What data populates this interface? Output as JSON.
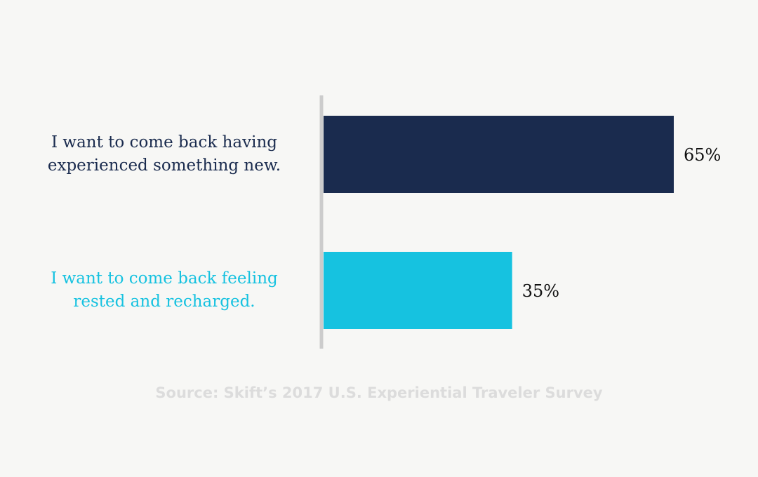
{
  "chart_data": {
    "type": "bar",
    "orientation": "horizontal",
    "categories": [
      "I want to come back having experienced something new.",
      "I want to come back feeling rested and recharged."
    ],
    "category_lines": [
      [
        "I want to come back having",
        "experienced something new."
      ],
      [
        "I want to come back feeling",
        "rested and recharged."
      ]
    ],
    "values": [
      65,
      35
    ],
    "value_labels": [
      "65%",
      "35%"
    ],
    "colors": [
      "#1a2b4e",
      "#16c2e0"
    ],
    "xlim": [
      0,
      65
    ],
    "grid": false,
    "legend": "none",
    "source": "Source: Skift’s 2017 U.S. Experiential Traveler Survey"
  },
  "axis_color": "#cccccc"
}
